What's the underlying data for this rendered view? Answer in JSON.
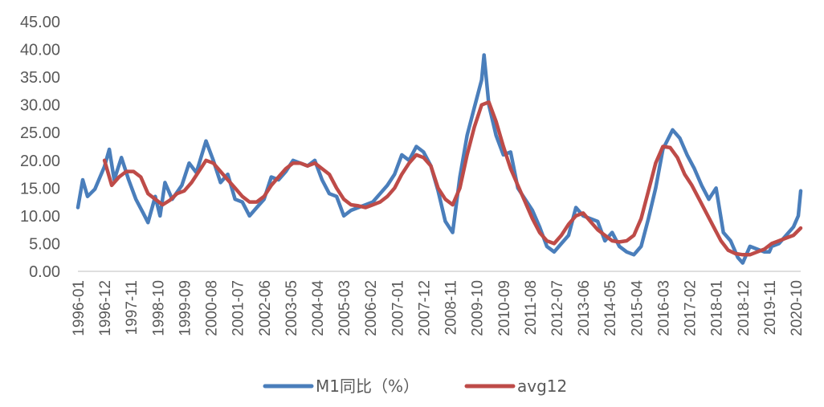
{
  "chart_data": {
    "type": "line",
    "title": "",
    "xlabel": "",
    "ylabel": "",
    "ylim": [
      0,
      45
    ],
    "y_ticks": [
      "0.00",
      "5.00",
      "10.00",
      "15.00",
      "20.00",
      "25.00",
      "30.00",
      "35.00",
      "40.00",
      "45.00"
    ],
    "x_ticks": [
      "1996-01",
      "1996-12",
      "1997-11",
      "1998-10",
      "1999-09",
      "2000-08",
      "2001-07",
      "2002-06",
      "2003-05",
      "2004-04",
      "2005-03",
      "2006-02",
      "2007-01",
      "2007-12",
      "2008-11",
      "2009-10",
      "2010-09",
      "2011-08",
      "2012-07",
      "2013-06",
      "2014-05",
      "2015-04",
      "2016-03",
      "2017-02",
      "2018-01",
      "2018-12",
      "2019-11",
      "2020-10"
    ],
    "grid": false,
    "legend_position": "bottom",
    "series": [
      {
        "name": "M1同比（%）",
        "color": "#4a7ebb",
        "points": [
          [
            "1996-01",
            11.5
          ],
          [
            "1996-03",
            16.5
          ],
          [
            "1996-05",
            13.5
          ],
          [
            "1996-08",
            14.8
          ],
          [
            "1996-12",
            18.9
          ],
          [
            "1997-02",
            22.0
          ],
          [
            "1997-04",
            16.5
          ],
          [
            "1997-07",
            20.5
          ],
          [
            "1997-10",
            16.5
          ],
          [
            "1998-01",
            13.0
          ],
          [
            "1998-04",
            10.5
          ],
          [
            "1998-06",
            8.8
          ],
          [
            "1998-09",
            13.5
          ],
          [
            "1998-11",
            10.0
          ],
          [
            "1999-01",
            16.0
          ],
          [
            "1999-04",
            13.0
          ],
          [
            "1999-08",
            15.5
          ],
          [
            "1999-11",
            19.5
          ],
          [
            "2000-02",
            17.8
          ],
          [
            "2000-06",
            23.5
          ],
          [
            "2000-09",
            20.0
          ],
          [
            "2000-12",
            16.0
          ],
          [
            "2001-03",
            17.5
          ],
          [
            "2001-06",
            13.0
          ],
          [
            "2001-09",
            12.5
          ],
          [
            "2001-12",
            10.0
          ],
          [
            "2002-03",
            11.5
          ],
          [
            "2002-06",
            13.0
          ],
          [
            "2002-09",
            17.0
          ],
          [
            "2002-12",
            16.5
          ],
          [
            "2003-03",
            18.0
          ],
          [
            "2003-06",
            20.0
          ],
          [
            "2003-09",
            19.5
          ],
          [
            "2003-12",
            19.0
          ],
          [
            "2004-03",
            20.0
          ],
          [
            "2004-06",
            16.5
          ],
          [
            "2004-09",
            14.0
          ],
          [
            "2004-12",
            13.5
          ],
          [
            "2005-03",
            10.0
          ],
          [
            "2005-06",
            11.0
          ],
          [
            "2005-09",
            11.5
          ],
          [
            "2005-12",
            12.0
          ],
          [
            "2006-03",
            12.5
          ],
          [
            "2006-06",
            14.0
          ],
          [
            "2006-09",
            15.5
          ],
          [
            "2006-12",
            17.5
          ],
          [
            "2007-03",
            21.0
          ],
          [
            "2007-06",
            20.0
          ],
          [
            "2007-09",
            22.5
          ],
          [
            "2007-12",
            21.5
          ],
          [
            "2008-03",
            19.0
          ],
          [
            "2008-06",
            14.5
          ],
          [
            "2008-09",
            9.0
          ],
          [
            "2008-12",
            7.0
          ],
          [
            "2009-03",
            17.0
          ],
          [
            "2009-06",
            24.5
          ],
          [
            "2009-09",
            29.5
          ],
          [
            "2009-12",
            34.5
          ],
          [
            "2010-01",
            39.0
          ],
          [
            "2010-03",
            30.0
          ],
          [
            "2010-06",
            24.5
          ],
          [
            "2010-09",
            21.0
          ],
          [
            "2010-12",
            21.5
          ],
          [
            "2011-03",
            15.0
          ],
          [
            "2011-06",
            13.0
          ],
          [
            "2011-09",
            11.0
          ],
          [
            "2011-12",
            8.0
          ],
          [
            "2012-03",
            4.5
          ],
          [
            "2012-06",
            3.5
          ],
          [
            "2012-09",
            5.0
          ],
          [
            "2012-12",
            6.5
          ],
          [
            "2013-03",
            11.5
          ],
          [
            "2013-06",
            10.0
          ],
          [
            "2013-09",
            9.5
          ],
          [
            "2013-12",
            9.0
          ],
          [
            "2014-03",
            5.5
          ],
          [
            "2014-06",
            7.0
          ],
          [
            "2014-09",
            4.5
          ],
          [
            "2014-12",
            3.5
          ],
          [
            "2015-03",
            3.0
          ],
          [
            "2015-06",
            4.5
          ],
          [
            "2015-09",
            9.5
          ],
          [
            "2015-12",
            15.0
          ],
          [
            "2016-03",
            22.0
          ],
          [
            "2016-07",
            25.5
          ],
          [
            "2016-10",
            24.0
          ],
          [
            "2017-01",
            21.0
          ],
          [
            "2017-04",
            18.5
          ],
          [
            "2017-07",
            15.5
          ],
          [
            "2017-10",
            13.0
          ],
          [
            "2018-01",
            15.0
          ],
          [
            "2018-04",
            7.0
          ],
          [
            "2018-07",
            5.5
          ],
          [
            "2018-10",
            2.5
          ],
          [
            "2018-12",
            1.5
          ],
          [
            "2019-03",
            4.5
          ],
          [
            "2019-06",
            4.0
          ],
          [
            "2019-09",
            3.5
          ],
          [
            "2019-11",
            3.5
          ],
          [
            "2019-12",
            4.5
          ],
          [
            "2020-03",
            5.0
          ],
          [
            "2020-06",
            6.5
          ],
          [
            "2020-09",
            8.0
          ],
          [
            "2020-11",
            10.0
          ],
          [
            "2020-12",
            14.5
          ]
        ]
      },
      {
        "name": "avg12",
        "color": "#be4b48",
        "points": [
          [
            "1996-12",
            20.0
          ],
          [
            "1997-03",
            15.5
          ],
          [
            "1997-06",
            17.0
          ],
          [
            "1997-09",
            18.0
          ],
          [
            "1997-12",
            18.0
          ],
          [
            "1998-03",
            17.0
          ],
          [
            "1998-06",
            14.0
          ],
          [
            "1998-09",
            13.0
          ],
          [
            "1998-12",
            12.0
          ],
          [
            "1999-03",
            12.8
          ],
          [
            "1999-06",
            14.0
          ],
          [
            "1999-09",
            14.5
          ],
          [
            "1999-12",
            16.0
          ],
          [
            "2000-03",
            18.0
          ],
          [
            "2000-06",
            20.0
          ],
          [
            "2000-09",
            19.5
          ],
          [
            "2000-12",
            18.0
          ],
          [
            "2001-03",
            16.5
          ],
          [
            "2001-06",
            15.0
          ],
          [
            "2001-09",
            13.5
          ],
          [
            "2001-12",
            12.5
          ],
          [
            "2002-03",
            12.5
          ],
          [
            "2002-06",
            13.5
          ],
          [
            "2002-09",
            15.5
          ],
          [
            "2002-12",
            17.0
          ],
          [
            "2003-03",
            18.5
          ],
          [
            "2003-06",
            19.5
          ],
          [
            "2003-09",
            19.5
          ],
          [
            "2003-12",
            19.0
          ],
          [
            "2004-03",
            19.5
          ],
          [
            "2004-06",
            18.5
          ],
          [
            "2004-09",
            17.5
          ],
          [
            "2004-12",
            15.0
          ],
          [
            "2005-03",
            13.0
          ],
          [
            "2005-06",
            12.0
          ],
          [
            "2005-09",
            11.8
          ],
          [
            "2005-12",
            11.5
          ],
          [
            "2006-03",
            12.0
          ],
          [
            "2006-06",
            12.5
          ],
          [
            "2006-09",
            13.5
          ],
          [
            "2006-12",
            15.0
          ],
          [
            "2007-03",
            17.5
          ],
          [
            "2007-06",
            19.5
          ],
          [
            "2007-09",
            21.0
          ],
          [
            "2007-12",
            20.5
          ],
          [
            "2008-03",
            19.0
          ],
          [
            "2008-06",
            15.0
          ],
          [
            "2008-09",
            13.0
          ],
          [
            "2008-12",
            12.0
          ],
          [
            "2009-03",
            15.0
          ],
          [
            "2009-06",
            21.0
          ],
          [
            "2009-09",
            26.0
          ],
          [
            "2009-12",
            30.0
          ],
          [
            "2010-03",
            30.5
          ],
          [
            "2010-06",
            27.0
          ],
          [
            "2010-09",
            22.5
          ],
          [
            "2010-12",
            18.5
          ],
          [
            "2011-03",
            15.5
          ],
          [
            "2011-06",
            12.5
          ],
          [
            "2011-09",
            9.5
          ],
          [
            "2011-12",
            7.0
          ],
          [
            "2012-03",
            5.5
          ],
          [
            "2012-06",
            5.0
          ],
          [
            "2012-09",
            6.5
          ],
          [
            "2012-12",
            8.5
          ],
          [
            "2013-03",
            10.0
          ],
          [
            "2013-06",
            10.5
          ],
          [
            "2013-09",
            9.0
          ],
          [
            "2013-12",
            7.5
          ],
          [
            "2014-03",
            6.5
          ],
          [
            "2014-06",
            5.5
          ],
          [
            "2014-09",
            5.3
          ],
          [
            "2014-12",
            5.5
          ],
          [
            "2015-03",
            6.5
          ],
          [
            "2015-06",
            9.5
          ],
          [
            "2015-09",
            14.5
          ],
          [
            "2015-12",
            19.5
          ],
          [
            "2016-03",
            22.5
          ],
          [
            "2016-06",
            22.3
          ],
          [
            "2016-09",
            20.5
          ],
          [
            "2016-12",
            17.5
          ],
          [
            "2017-03",
            15.5
          ],
          [
            "2017-06",
            13.0
          ],
          [
            "2017-09",
            10.5
          ],
          [
            "2017-12",
            8.0
          ],
          [
            "2018-03",
            5.5
          ],
          [
            "2018-06",
            3.8
          ],
          [
            "2018-09",
            3.2
          ],
          [
            "2018-12",
            3.0
          ],
          [
            "2019-03",
            3.0
          ],
          [
            "2019-06",
            3.5
          ],
          [
            "2019-09",
            4.0
          ],
          [
            "2019-12",
            5.0
          ],
          [
            "2020-03",
            5.5
          ],
          [
            "2020-06",
            6.0
          ],
          [
            "2020-09",
            6.5
          ],
          [
            "2020-12",
            7.8
          ]
        ]
      }
    ]
  }
}
